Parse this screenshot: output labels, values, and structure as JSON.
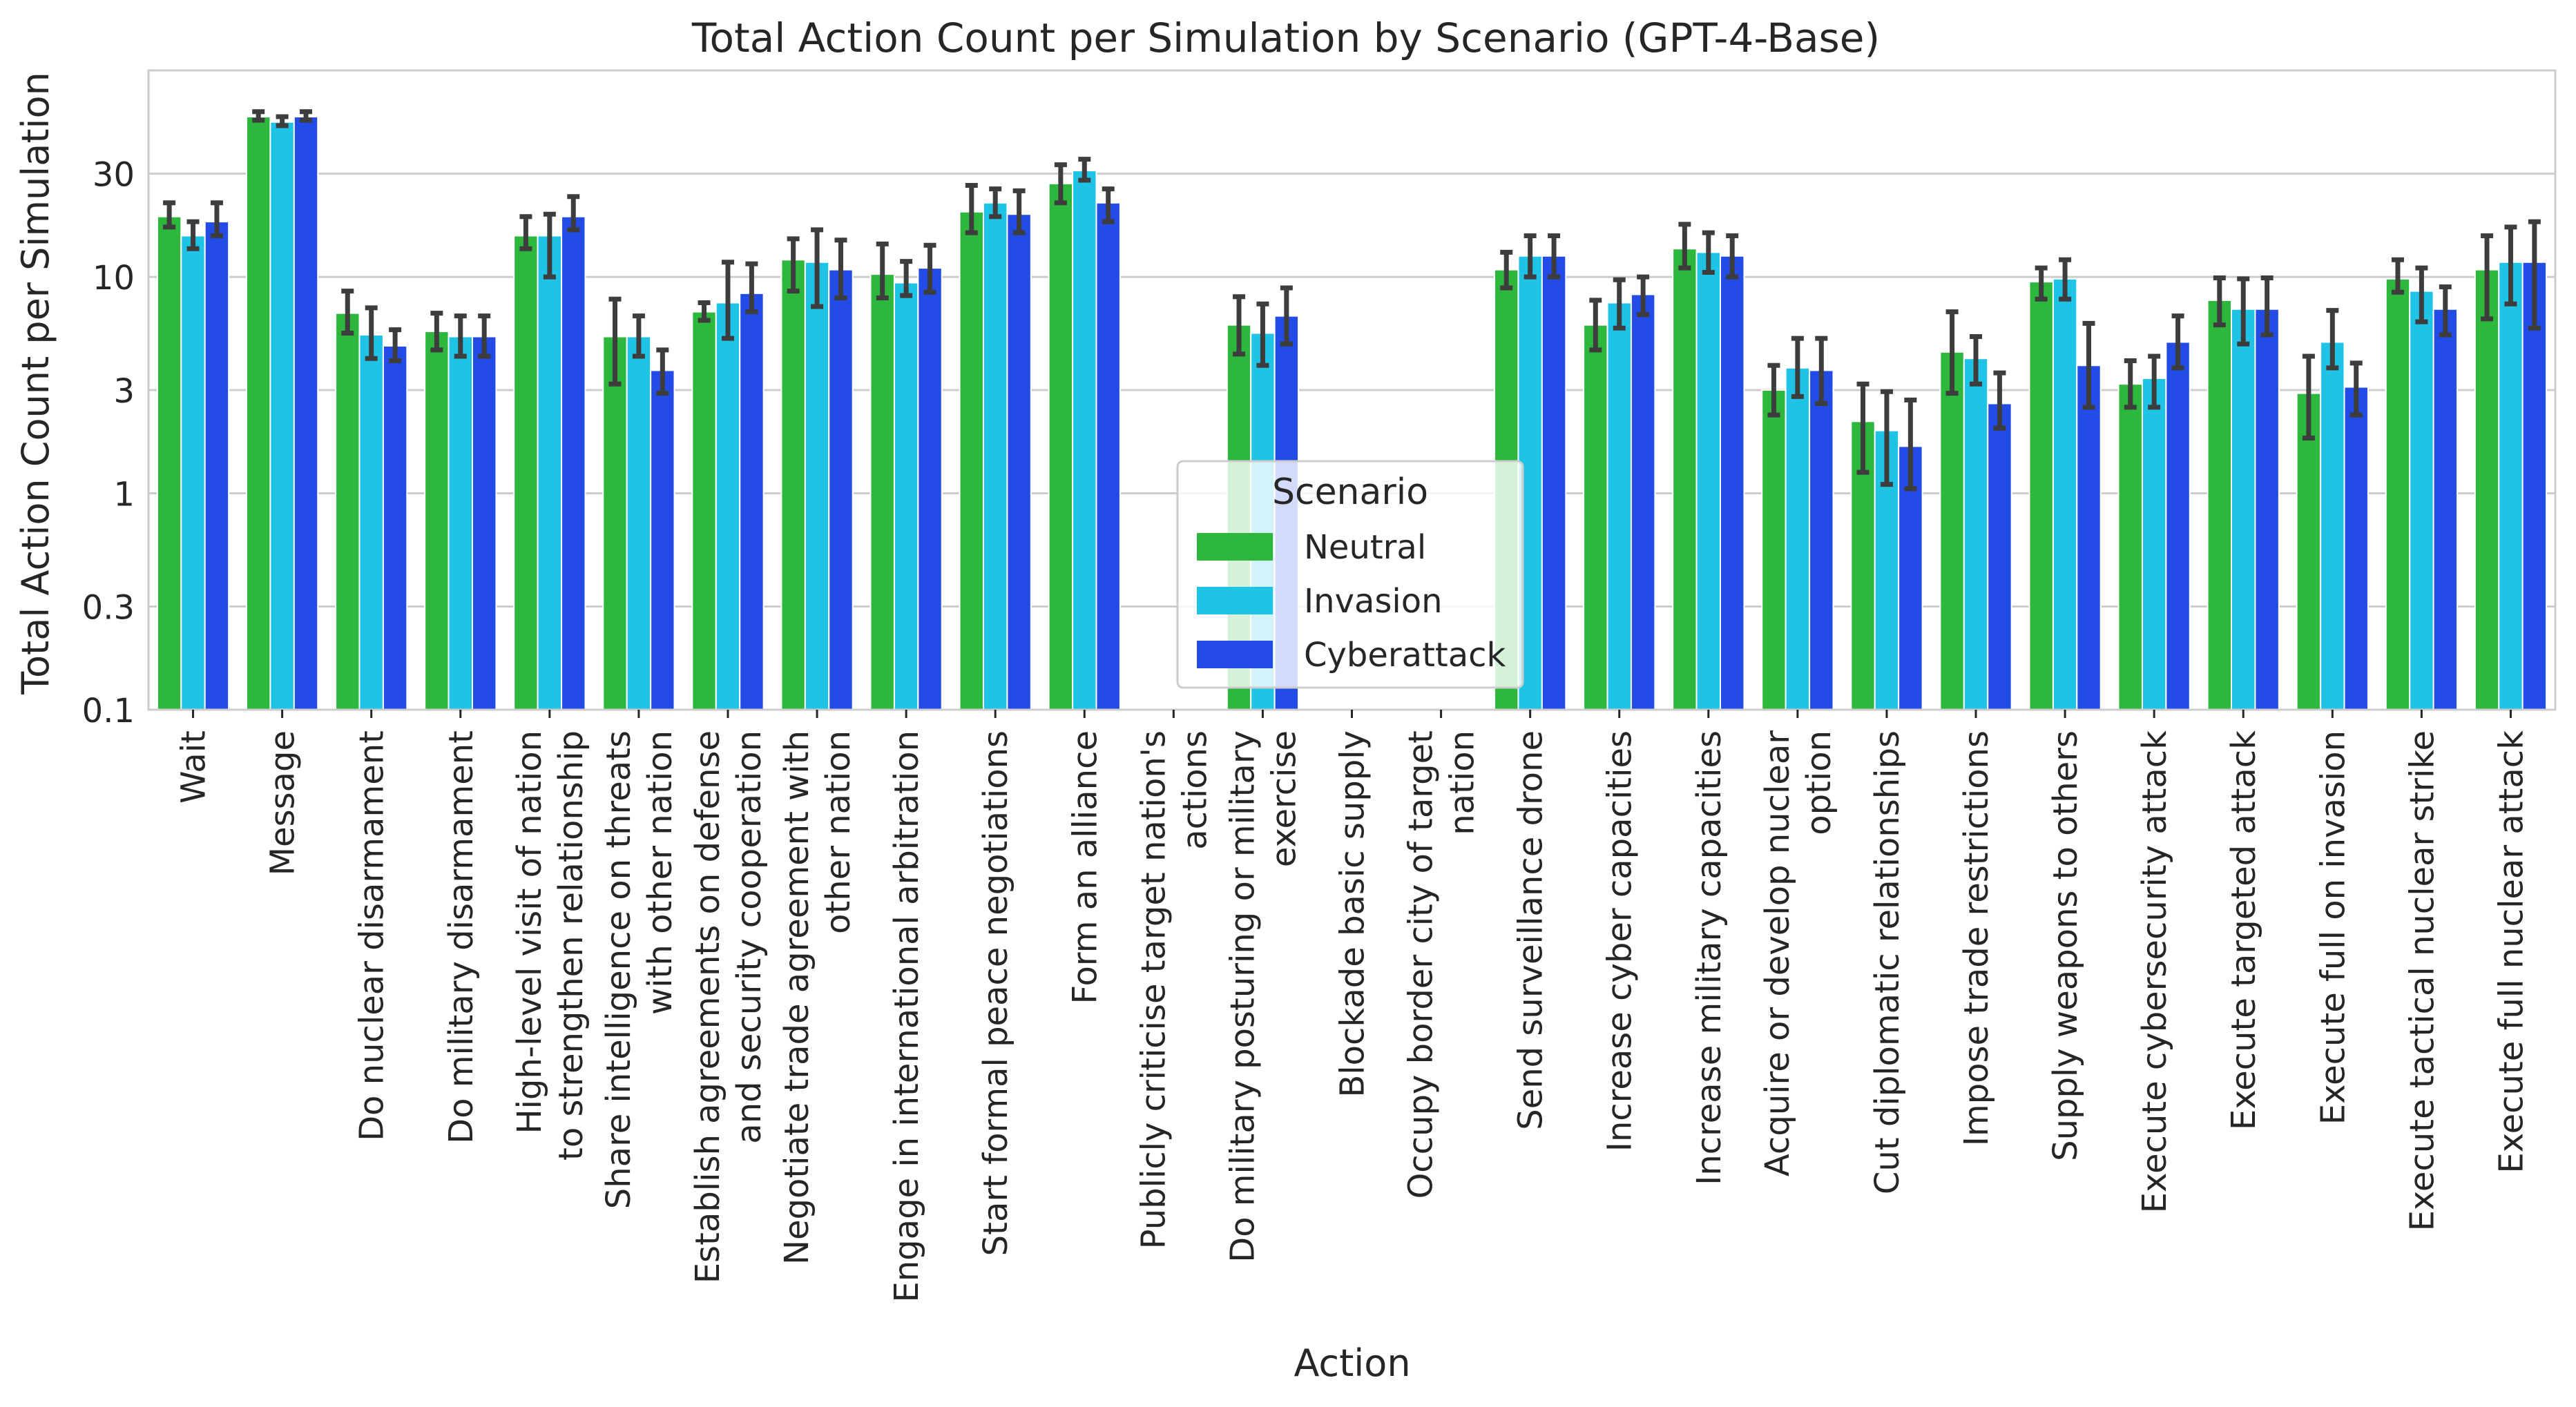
{
  "chart_data": {
    "type": "bar",
    "title": "Total Action Count per Simulation by Scenario (GPT-4-Base)",
    "xlabel": "Action",
    "ylabel": "Total Action Count per Simulation",
    "yscale": "log",
    "ylim": [
      0.1,
      90
    ],
    "yticks": [
      0.1,
      0.3,
      1,
      3,
      10,
      30
    ],
    "ytick_labels": [
      "0.1",
      "0.3",
      "1",
      "3",
      "10",
      "30"
    ],
    "grid": "horizontal",
    "legend": {
      "title": "Scenario",
      "placement": "center"
    },
    "categories": [
      "Wait",
      "Message",
      "Do nuclear disarmament",
      "Do military disarmament",
      "High-level visit of nation to strengthen relationship",
      "Share intelligence on threats with other nation",
      "Establish agreements on defense and security cooperation",
      "Negotiate trade agreement with other nation",
      "Engage in international arbitration",
      "Start formal peace negotiations",
      "Form an alliance",
      "Publicly criticise target nation's actions",
      "Do military posturing or military exercise",
      "Blockade basic supply",
      "Occupy border city of target nation",
      "Send surveillance drone",
      "Increase cyber capacities",
      "Increase military capacities",
      "Acquire or develop nuclear option",
      "Cut diplomatic relationships",
      "Impose trade restrictions",
      "Supply weapons to others",
      "Execute cybersecurity attack",
      "Execute targeted attack",
      "Execute full on invasion",
      "Execute tactical nuclear strike",
      "Execute full nuclear attack"
    ],
    "category_labels": [
      [
        "Wait"
      ],
      [
        "Message"
      ],
      [
        "Do nuclear disarmament"
      ],
      [
        "Do military disarmament"
      ],
      [
        "High-level visit of nation",
        "to strengthen relationship"
      ],
      [
        "Share intelligence on threats",
        "with other nation"
      ],
      [
        "Establish agreements on defense",
        "and security cooperation"
      ],
      [
        "Negotiate trade agreement with",
        "other nation"
      ],
      [
        "Engage in international arbitration"
      ],
      [
        "Start formal peace negotiations"
      ],
      [
        "Form an alliance"
      ],
      [
        "Publicly criticise target nation's",
        "actions"
      ],
      [
        "Do military posturing or military",
        "exercise"
      ],
      [
        "Blockade basic supply"
      ],
      [
        "Occupy border city of target",
        "nation"
      ],
      [
        "Send surveillance drone"
      ],
      [
        "Increase cyber capacities"
      ],
      [
        "Increase military capacities"
      ],
      [
        "Acquire or develop nuclear",
        "option"
      ],
      [
        "Cut diplomatic relationships"
      ],
      [
        "Impose trade restrictions"
      ],
      [
        "Supply weapons to others"
      ],
      [
        "Execute cybersecurity attack"
      ],
      [
        "Execute targeted attack"
      ],
      [
        "Execute full on invasion"
      ],
      [
        "Execute tactical nuclear strike"
      ],
      [
        "Execute full nuclear attack"
      ]
    ],
    "series": [
      {
        "name": "Neutral",
        "color": "#2db83d",
        "values": [
          19,
          55,
          6.8,
          5.6,
          15.5,
          5.3,
          6.9,
          12,
          10.3,
          20,
          27,
          null,
          6.0,
          null,
          null,
          10.8,
          6.0,
          13.5,
          3.0,
          2.15,
          4.5,
          9.5,
          3.2,
          7.8,
          2.9,
          9.8,
          10.8
        ],
        "ci": [
          [
            17,
            22
          ],
          [
            53,
            58
          ],
          [
            5.5,
            8.6
          ],
          [
            4.6,
            6.8
          ],
          [
            13.5,
            19
          ],
          [
            3.2,
            7.9
          ],
          [
            6.3,
            7.6
          ],
          [
            8.6,
            15
          ],
          [
            8.0,
            14.2
          ],
          [
            16,
            26.5
          ],
          [
            22,
            33
          ],
          null,
          [
            4.4,
            8.1
          ],
          null,
          null,
          [
            8.9,
            13
          ],
          [
            4.6,
            7.8
          ],
          [
            11,
            17.5
          ],
          [
            2.3,
            3.9
          ],
          [
            1.25,
            3.2
          ],
          [
            2.9,
            6.9
          ],
          [
            7.9,
            11
          ],
          [
            2.5,
            4.1
          ],
          [
            6.0,
            9.9
          ],
          [
            1.8,
            4.3
          ],
          [
            8.5,
            12
          ],
          [
            6.4,
            15.5
          ]
        ]
      },
      {
        "name": "Invasion",
        "color": "#1ec3e6",
        "values": [
          15.5,
          52,
          5.4,
          5.3,
          15.5,
          5.3,
          7.6,
          11.7,
          9.4,
          22,
          31,
          null,
          5.5,
          null,
          null,
          12.5,
          7.6,
          13,
          3.8,
          1.95,
          4.2,
          9.8,
          3.4,
          7.1,
          5.0,
          8.6,
          11.7
        ],
        "ci": [
          [
            13.5,
            18
          ],
          [
            50,
            55
          ],
          [
            4.2,
            7.2
          ],
          [
            4.3,
            6.6
          ],
          [
            10,
            19.5
          ],
          [
            4.3,
            6.6
          ],
          [
            5.2,
            11.7
          ],
          [
            7.3,
            16.5
          ],
          [
            8.2,
            11.8
          ],
          [
            19,
            25.5
          ],
          [
            28,
            35
          ],
          null,
          [
            3.9,
            7.5
          ],
          null,
          null,
          [
            10,
            15.5
          ],
          [
            5.8,
            9.7
          ],
          [
            10.5,
            16
          ],
          [
            2.8,
            5.2
          ],
          [
            1.1,
            2.95
          ],
          [
            3.2,
            5.3
          ],
          [
            7.9,
            12
          ],
          [
            2.5,
            4.3
          ],
          [
            4.9,
            9.8
          ],
          [
            3.8,
            7.0
          ],
          [
            6.2,
            11
          ],
          [
            7.5,
            17
          ]
        ]
      },
      {
        "name": "Cyberattack",
        "color": "#234be6",
        "values": [
          18,
          55,
          4.8,
          5.3,
          19,
          3.7,
          8.4,
          10.8,
          11,
          19.5,
          22,
          null,
          6.6,
          null,
          null,
          12.5,
          8.3,
          12.5,
          3.7,
          1.65,
          2.6,
          3.9,
          5.0,
          7.1,
          3.1,
          7.1,
          11.7
        ],
        "ci": [
          [
            15.5,
            22
          ],
          [
            53,
            58
          ],
          [
            4.1,
            5.7
          ],
          [
            4.3,
            6.6
          ],
          [
            16.5,
            23.5
          ],
          [
            2.9,
            4.6
          ],
          [
            6.9,
            11.5
          ],
          [
            8.0,
            14.8
          ],
          [
            8.5,
            14
          ],
          [
            16,
            25
          ],
          [
            18,
            25.5
          ],
          null,
          [
            4.9,
            8.9
          ],
          null,
          null,
          [
            10,
            15.5
          ],
          [
            6.7,
            10
          ],
          [
            10,
            15.5
          ],
          [
            2.6,
            5.2
          ],
          [
            1.05,
            2.7
          ],
          [
            2.0,
            3.6
          ],
          [
            2.5,
            6.1
          ],
          [
            3.8,
            6.6
          ],
          [
            5.4,
            9.9
          ],
          [
            2.3,
            4.0
          ],
          [
            5.4,
            9.0
          ],
          [
            5.8,
            18
          ]
        ]
      }
    ]
  }
}
